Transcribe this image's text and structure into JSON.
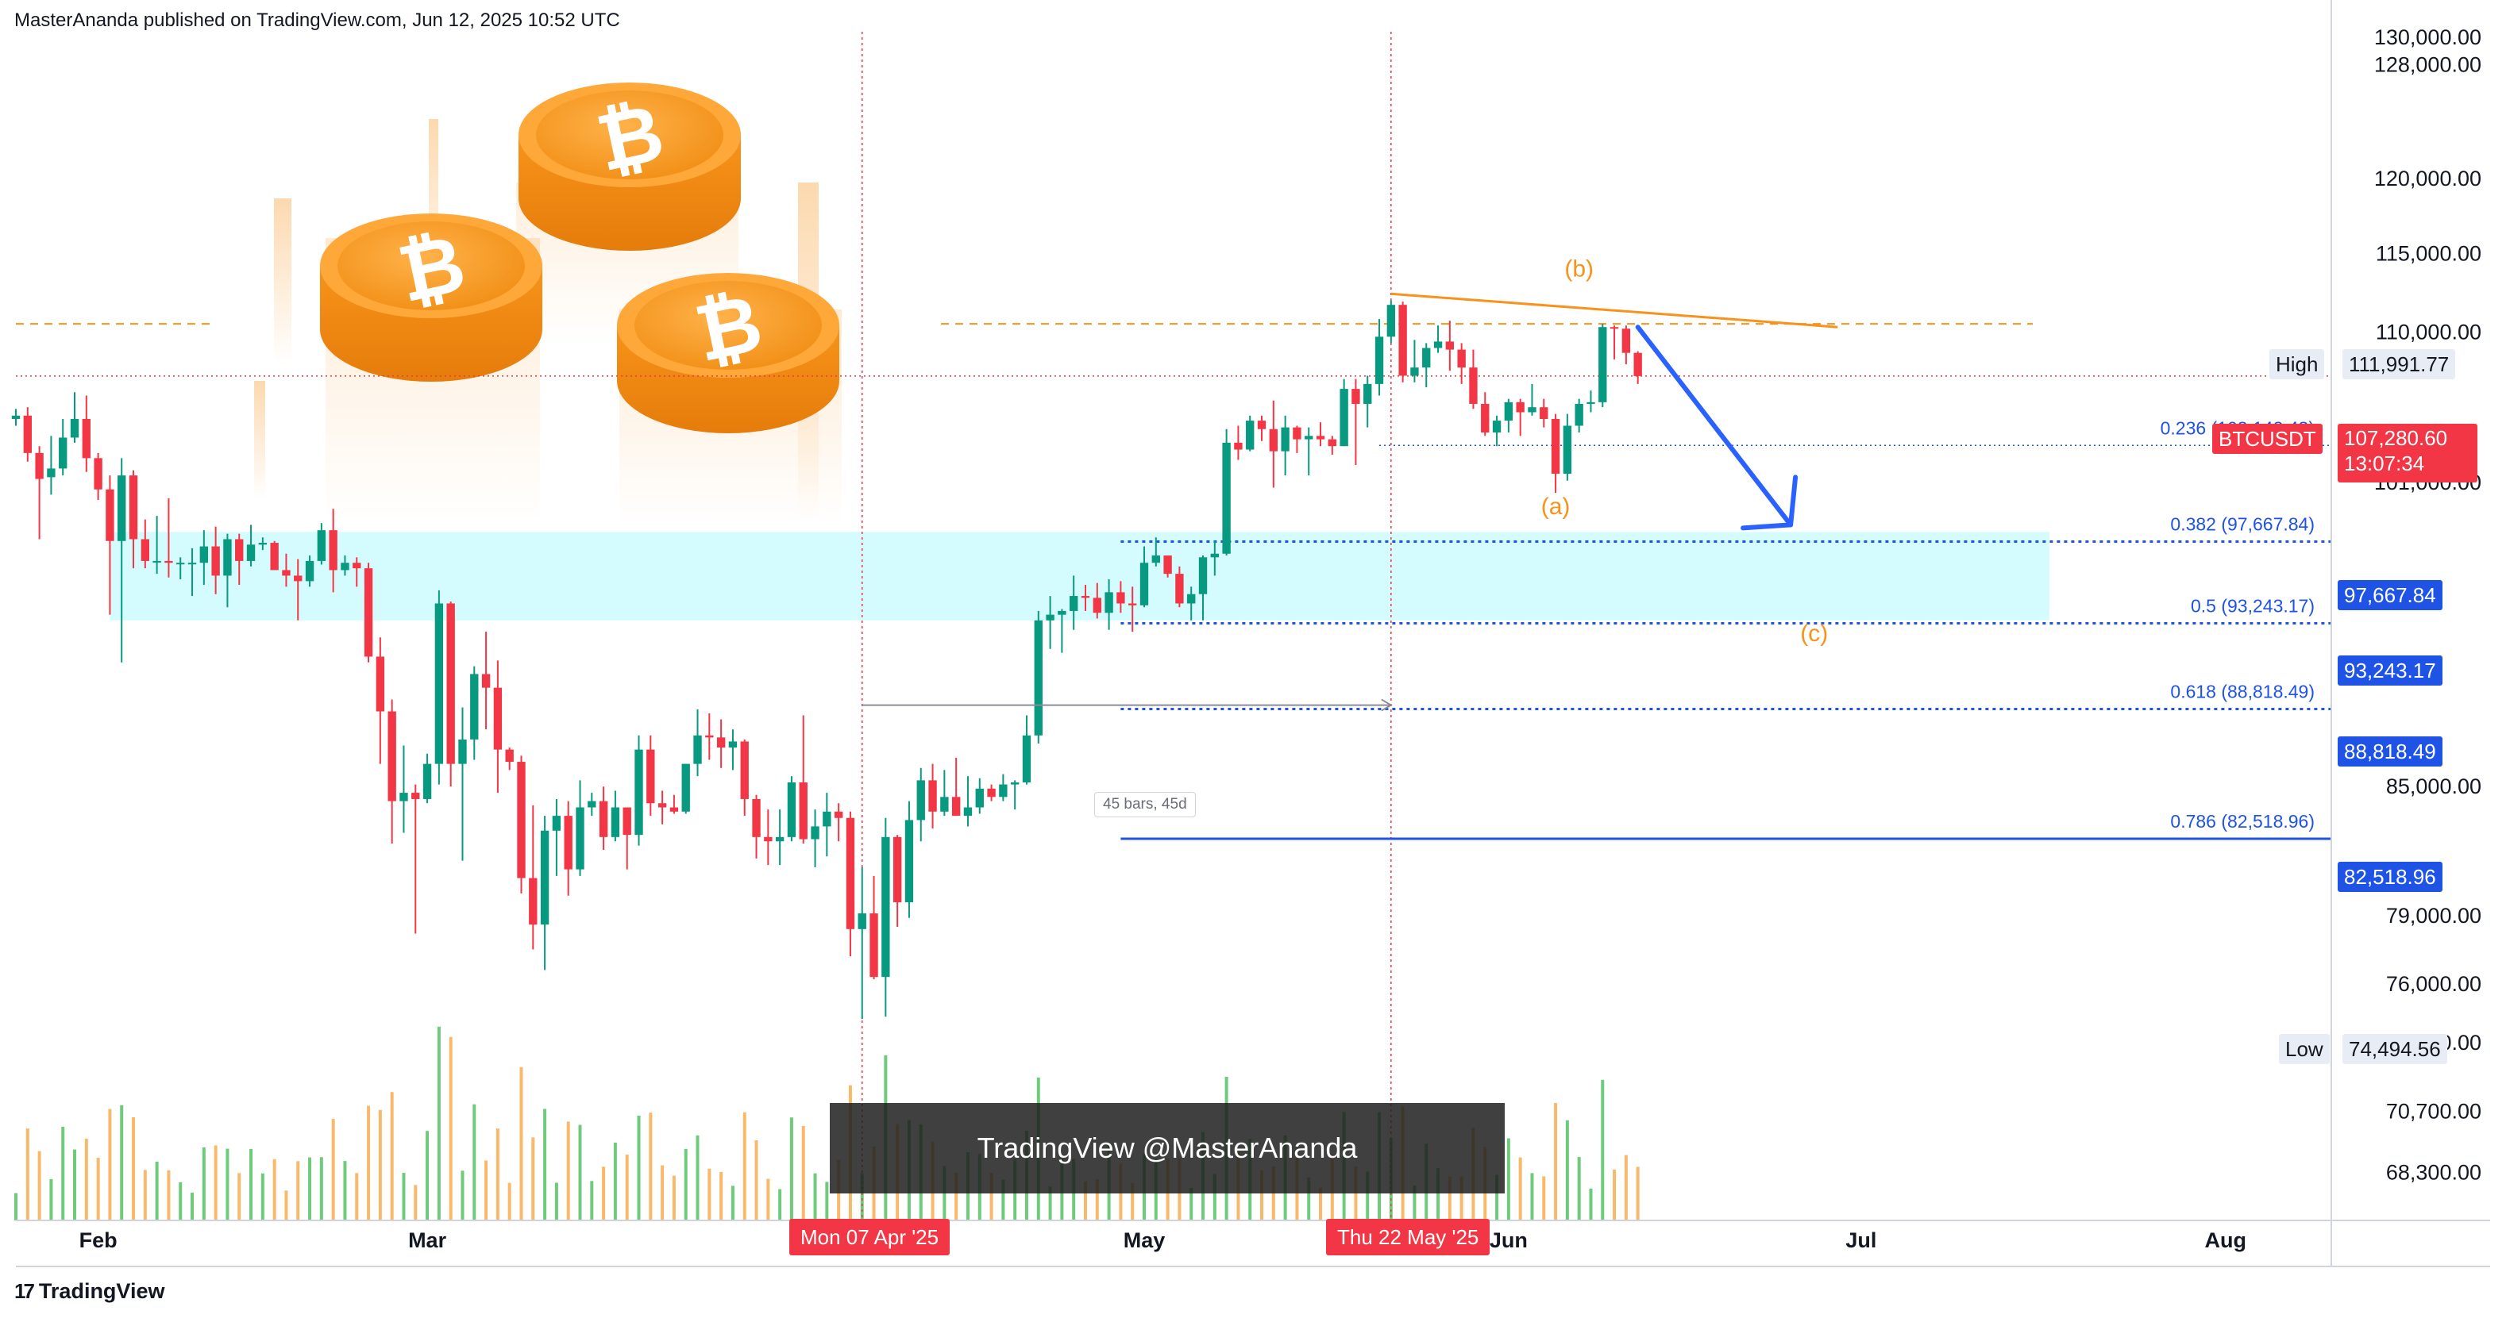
{
  "header": {
    "text": "MasterAnanda published on TradingView.com, Jun 12, 2025 10:52 UTC"
  },
  "footer": {
    "logo_mark": "17",
    "logo_text": "TradingView"
  },
  "watermark": {
    "text": "TradingView @MasterAnanda"
  },
  "measure_label": "45 bars, 45d",
  "price_tags": {
    "high_label": "High",
    "high_value": "111,991.77",
    "low_label": "Low",
    "low_value": "74,494.56",
    "symbol": "BTCUSDT",
    "last_price": "107,280.60",
    "countdown": "13:07:34",
    "fib_382": "97,667.84",
    "fib_5": "93,243.17",
    "fib_618": "88,818.49",
    "fib_786": "82,518.96"
  },
  "date_tags": {
    "left": "Mon 07 Apr '25",
    "right": "Thu 22 May '25"
  },
  "colors": {
    "up": "#089981",
    "down": "#f23645",
    "fib": "#1e53e5",
    "orange": "#f7931a",
    "zone": "#d4fbfd"
  },
  "chart_data": {
    "type": "candlestick",
    "symbol": "BTCUSDT",
    "timeframe": "1D",
    "y_scale": "log",
    "ylim": [
      67000,
      131000
    ],
    "y_ticks": [
      {
        "v": 130000,
        "label": "130,000.00"
      },
      {
        "v": 128000,
        "label": "128,000.00"
      },
      {
        "v": 120000,
        "label": "120,000.00"
      },
      {
        "v": 115000,
        "label": "115,000.00"
      },
      {
        "v": 110000,
        "label": "110,000.00"
      },
      {
        "v": 101000,
        "label": "101,000.00"
      },
      {
        "v": 85000,
        "label": "85,000.00"
      },
      {
        "v": 79000,
        "label": "79,000.00"
      },
      {
        "v": 76000,
        "label": "76,000.00"
      },
      {
        "v": 73500,
        "label": "73,500.00"
      },
      {
        "v": 70700,
        "label": "70,700.00"
      },
      {
        "v": 68300,
        "label": "68,300.00"
      }
    ],
    "x_range": [
      "2025-01-25",
      "2025-08-10"
    ],
    "x_ticks": [
      {
        "date": "2025-02-01",
        "label": "Feb"
      },
      {
        "date": "2025-03-01",
        "label": "Mar"
      },
      {
        "date": "2025-05-01",
        "label": "May"
      },
      {
        "date": "2025-06-01",
        "label": "Jun"
      },
      {
        "date": "2025-07-01",
        "label": "Jul"
      },
      {
        "date": "2025-08-01",
        "label": "Aug"
      }
    ],
    "fib_levels": [
      {
        "ratio": "0.236",
        "price": 103142.43,
        "label": "0.236 (103,142.43)",
        "style": "dotted"
      },
      {
        "ratio": "0.382",
        "price": 97667.84,
        "label": "0.382 (97,667.84)",
        "style": "dotted"
      },
      {
        "ratio": "0.5",
        "price": 93243.17,
        "label": "0.5 (93,243.17)",
        "style": "dotted"
      },
      {
        "ratio": "0.618",
        "price": 88818.49,
        "label": "0.618 (88,818.49)",
        "style": "dotted"
      },
      {
        "ratio": "0.786",
        "price": 82518.96,
        "label": "0.786 (82,518.96)",
        "style": "solid"
      }
    ],
    "support_zone": {
      "from_date": "2025-02-02",
      "to_date": "2025-07-17",
      "low": 93400,
      "high": 98200
    },
    "resistance_dashed_price": 110500,
    "trendline": {
      "from": {
        "date": "2025-05-22",
        "price": 112400
      },
      "to": {
        "date": "2025-06-29",
        "price": 110300
      }
    },
    "arrow": {
      "from": {
        "date": "2025-06-12",
        "price": 110300
      },
      "to": {
        "date": "2025-06-25",
        "price": 98600
      }
    },
    "wave_labels": [
      {
        "text": "(a)",
        "date": "2025-06-05",
        "price": 99200
      },
      {
        "text": "(b)",
        "date": "2025-06-07",
        "price": 113500
      },
      {
        "text": "(c)",
        "date": "2025-06-27",
        "price": 92300
      }
    ],
    "crosshair_dates": [
      "2025-04-07",
      "2025-05-22"
    ],
    "ohlc": [
      [
        "2025-01-25",
        104700,
        105300,
        104300,
        104900
      ],
      [
        "2025-01-26",
        104900,
        105400,
        102200,
        102700
      ],
      [
        "2025-01-27",
        102700,
        103100,
        97800,
        101200
      ],
      [
        "2025-01-28",
        101300,
        103700,
        100300,
        101800
      ],
      [
        "2025-01-29",
        101800,
        104700,
        101400,
        103600
      ],
      [
        "2025-01-30",
        103600,
        106300,
        103300,
        104700
      ],
      [
        "2025-01-31",
        104700,
        106100,
        101600,
        102400
      ],
      [
        "2025-02-01",
        102400,
        102700,
        100000,
        100600
      ],
      [
        "2025-02-02",
        100600,
        101400,
        93700,
        97700
      ],
      [
        "2025-02-03",
        97700,
        102400,
        91200,
        101400
      ],
      [
        "2025-02-04",
        101400,
        101700,
        96200,
        97800
      ],
      [
        "2025-02-05",
        97800,
        98900,
        96200,
        96600
      ],
      [
        "2025-02-06",
        96600,
        99100,
        95900,
        96600
      ],
      [
        "2025-02-07",
        96600,
        100100,
        95700,
        96500
      ],
      [
        "2025-02-08",
        96500,
        96800,
        95600,
        96500
      ],
      [
        "2025-02-09",
        96500,
        97300,
        94700,
        96500
      ],
      [
        "2025-02-10",
        96500,
        98300,
        95300,
        97400
      ],
      [
        "2025-02-11",
        97400,
        98500,
        94800,
        95800
      ],
      [
        "2025-02-12",
        95800,
        98100,
        94100,
        97800
      ],
      [
        "2025-02-13",
        97800,
        98100,
        95300,
        96600
      ],
      [
        "2025-02-14",
        96600,
        98600,
        96300,
        97500
      ],
      [
        "2025-02-15",
        97500,
        97900,
        97200,
        97600
      ],
      [
        "2025-02-16",
        97600,
        97700,
        96200,
        96100
      ],
      [
        "2025-02-17",
        96100,
        97000,
        95200,
        95800
      ],
      [
        "2025-02-18",
        95800,
        96700,
        93400,
        95500
      ],
      [
        "2025-02-19",
        95500,
        96900,
        95200,
        96600
      ],
      [
        "2025-02-20",
        96600,
        98700,
        96400,
        98300
      ],
      [
        "2025-02-21",
        98300,
        99500,
        94900,
        96100
      ],
      [
        "2025-02-22",
        96100,
        96900,
        95800,
        96500
      ],
      [
        "2025-02-23",
        96500,
        96800,
        95200,
        96200
      ],
      [
        "2025-02-24",
        96200,
        96500,
        91200,
        91500
      ],
      [
        "2025-02-25",
        91500,
        92500,
        86100,
        88700
      ],
      [
        "2025-02-26",
        88700,
        89300,
        82300,
        84300
      ],
      [
        "2025-02-27",
        84300,
        87000,
        82800,
        84700
      ],
      [
        "2025-02-28",
        84700,
        85100,
        78200,
        84400
      ],
      [
        "2025-03-01",
        84400,
        86600,
        84200,
        86100
      ],
      [
        "2025-03-02",
        86100,
        95000,
        85100,
        94300
      ],
      [
        "2025-03-03",
        94300,
        94400,
        85000,
        86100
      ],
      [
        "2025-03-04",
        86100,
        88900,
        81500,
        87300
      ],
      [
        "2025-03-05",
        87300,
        91000,
        86300,
        90600
      ],
      [
        "2025-03-06",
        90600,
        92800,
        87800,
        89900
      ],
      [
        "2025-03-07",
        89900,
        91300,
        84700,
        86800
      ],
      [
        "2025-03-08",
        86800,
        86900,
        85800,
        86200
      ],
      [
        "2025-03-09",
        86200,
        86500,
        80000,
        80700
      ],
      [
        "2025-03-10",
        80700,
        84100,
        77500,
        78600
      ],
      [
        "2025-03-11",
        78600,
        83600,
        76600,
        82900
      ],
      [
        "2025-03-12",
        82900,
        84400,
        80800,
        83600
      ],
      [
        "2025-03-13",
        83600,
        84300,
        79900,
        81100
      ],
      [
        "2025-03-14",
        81100,
        85300,
        80800,
        84000
      ],
      [
        "2025-03-15",
        84000,
        84700,
        83600,
        84300
      ],
      [
        "2025-03-16",
        84300,
        85000,
        82000,
        82600
      ],
      [
        "2025-03-17",
        82600,
        84800,
        82400,
        84000
      ],
      [
        "2025-03-18",
        84000,
        84000,
        81100,
        82700
      ],
      [
        "2025-03-19",
        82700,
        87500,
        82200,
        86800
      ],
      [
        "2025-03-20",
        86800,
        87500,
        83600,
        84200
      ],
      [
        "2025-03-21",
        84200,
        84800,
        83200,
        84000
      ],
      [
        "2025-03-22",
        84000,
        84600,
        83700,
        83800
      ],
      [
        "2025-03-23",
        83800,
        86100,
        83700,
        86100
      ],
      [
        "2025-03-24",
        86100,
        88800,
        85500,
        87500
      ],
      [
        "2025-03-25",
        87500,
        88600,
        86300,
        87400
      ],
      [
        "2025-03-26",
        87400,
        88300,
        85900,
        86900
      ],
      [
        "2025-03-27",
        86900,
        87800,
        85800,
        87200
      ],
      [
        "2025-03-28",
        87200,
        87300,
        83600,
        84400
      ],
      [
        "2025-03-29",
        84400,
        84600,
        81600,
        82600
      ],
      [
        "2025-03-30",
        82600,
        83900,
        81300,
        82400
      ],
      [
        "2025-03-31",
        82400,
        83900,
        81300,
        82600
      ],
      [
        "2025-04-01",
        82600,
        85500,
        82400,
        85200
      ],
      [
        "2025-04-02",
        85200,
        88500,
        82300,
        82500
      ],
      [
        "2025-04-03",
        82500,
        83900,
        81200,
        83100
      ],
      [
        "2025-04-04",
        83100,
        84700,
        81700,
        83800
      ],
      [
        "2025-04-05",
        83800,
        84200,
        82400,
        83500
      ],
      [
        "2025-04-06",
        83500,
        83800,
        77200,
        78400
      ],
      [
        "2025-04-07",
        78400,
        81200,
        74500,
        79100
      ],
      [
        "2025-04-08",
        79100,
        80800,
        76200,
        76300
      ],
      [
        "2025-04-09",
        76300,
        83500,
        74600,
        82600
      ],
      [
        "2025-04-10",
        82600,
        82700,
        78500,
        79600
      ],
      [
        "2025-04-11",
        79600,
        84300,
        78900,
        83400
      ],
      [
        "2025-04-12",
        83400,
        85900,
        82400,
        85300
      ],
      [
        "2025-04-13",
        85300,
        86100,
        83000,
        83800
      ],
      [
        "2025-04-14",
        83800,
        85800,
        83600,
        84500
      ],
      [
        "2025-04-15",
        84500,
        86400,
        83600,
        83600
      ],
      [
        "2025-04-16",
        83600,
        85500,
        83100,
        84000
      ],
      [
        "2025-04-17",
        84000,
        85400,
        83700,
        84900
      ],
      [
        "2025-04-18",
        84900,
        85100,
        84300,
        84500
      ],
      [
        "2025-04-19",
        84500,
        85600,
        84300,
        85100
      ],
      [
        "2025-04-20",
        85100,
        85300,
        83900,
        85200
      ],
      [
        "2025-04-21",
        85200,
        88500,
        85100,
        87500
      ],
      [
        "2025-04-22",
        87500,
        93900,
        87100,
        93400
      ],
      [
        "2025-04-23",
        93400,
        94700,
        91900,
        93700
      ],
      [
        "2025-04-24",
        93700,
        94000,
        91700,
        93900
      ],
      [
        "2025-04-25",
        93900,
        95800,
        92900,
        94700
      ],
      [
        "2025-04-26",
        94700,
        95300,
        93900,
        94600
      ],
      [
        "2025-04-27",
        94600,
        95400,
        93500,
        93800
      ],
      [
        "2025-04-28",
        93800,
        95600,
        92900,
        94900
      ],
      [
        "2025-04-29",
        94900,
        95500,
        93800,
        94300
      ],
      [
        "2025-04-30",
        94300,
        95200,
        92800,
        94200
      ],
      [
        "2025-05-01",
        94200,
        97400,
        94100,
        96500
      ],
      [
        "2025-05-02",
        96500,
        97900,
        96300,
        96900
      ],
      [
        "2025-05-03",
        96900,
        96900,
        95700,
        95900
      ],
      [
        "2025-05-04",
        95900,
        96300,
        94100,
        94300
      ],
      [
        "2025-05-05",
        94300,
        95200,
        93400,
        94800
      ],
      [
        "2025-05-06",
        94800,
        96900,
        93400,
        96800
      ],
      [
        "2025-05-07",
        96800,
        97700,
        95800,
        97000
      ],
      [
        "2025-05-08",
        97000,
        104100,
        96900,
        103300
      ],
      [
        "2025-05-09",
        103300,
        104300,
        102300,
        102900
      ],
      [
        "2025-05-10",
        102900,
        104900,
        102800,
        104600
      ],
      [
        "2025-05-11",
        104600,
        104900,
        103400,
        104100
      ],
      [
        "2025-05-12",
        104100,
        105800,
        100700,
        102800
      ],
      [
        "2025-05-13",
        102800,
        104900,
        101400,
        104200
      ],
      [
        "2025-05-14",
        104200,
        104300,
        102700,
        103500
      ],
      [
        "2025-05-15",
        103500,
        104200,
        101400,
        103700
      ],
      [
        "2025-05-16",
        103700,
        104500,
        103100,
        103500
      ],
      [
        "2025-05-17",
        103500,
        103700,
        102600,
        103100
      ],
      [
        "2025-05-18",
        103100,
        107100,
        103100,
        106500
      ],
      [
        "2025-05-19",
        106500,
        107100,
        102000,
        105600
      ],
      [
        "2025-05-20",
        105600,
        107300,
        104200,
        106800
      ],
      [
        "2025-05-21",
        106800,
        110800,
        106100,
        109700
      ],
      [
        "2025-05-22",
        109700,
        111991,
        109300,
        111700
      ],
      [
        "2025-05-23",
        111700,
        111900,
        106900,
        107300
      ],
      [
        "2025-05-24",
        107300,
        109500,
        106900,
        107800
      ],
      [
        "2025-05-25",
        107800,
        109300,
        106600,
        109000
      ],
      [
        "2025-05-26",
        109000,
        110400,
        108700,
        109400
      ],
      [
        "2025-05-27",
        109400,
        110700,
        107600,
        108900
      ],
      [
        "2025-05-28",
        108900,
        109300,
        106800,
        107800
      ],
      [
        "2025-05-29",
        107800,
        108900,
        105300,
        105600
      ],
      [
        "2025-05-30",
        105600,
        106300,
        103700,
        103900
      ],
      [
        "2025-05-31",
        103900,
        104900,
        103100,
        104600
      ],
      [
        "2025-06-01",
        104600,
        105900,
        103900,
        105700
      ],
      [
        "2025-06-02",
        105700,
        105900,
        103700,
        105100
      ],
      [
        "2025-06-03",
        105100,
        106800,
        104900,
        105400
      ],
      [
        "2025-06-04",
        105400,
        105900,
        104200,
        104700
      ],
      [
        "2025-06-05",
        104700,
        105000,
        100400,
        101500
      ],
      [
        "2025-06-06",
        101500,
        105000,
        101100,
        104300
      ],
      [
        "2025-06-07",
        104300,
        105900,
        103900,
        105600
      ],
      [
        "2025-06-08",
        105600,
        106400,
        105100,
        105700
      ],
      [
        "2025-06-09",
        105700,
        110500,
        105400,
        110300
      ],
      [
        "2025-06-10",
        110300,
        110400,
        108300,
        110200
      ],
      [
        "2025-06-11",
        110200,
        110400,
        108000,
        108700
      ],
      [
        "2025-06-12",
        108700,
        108800,
        106800,
        107280
      ]
    ]
  }
}
